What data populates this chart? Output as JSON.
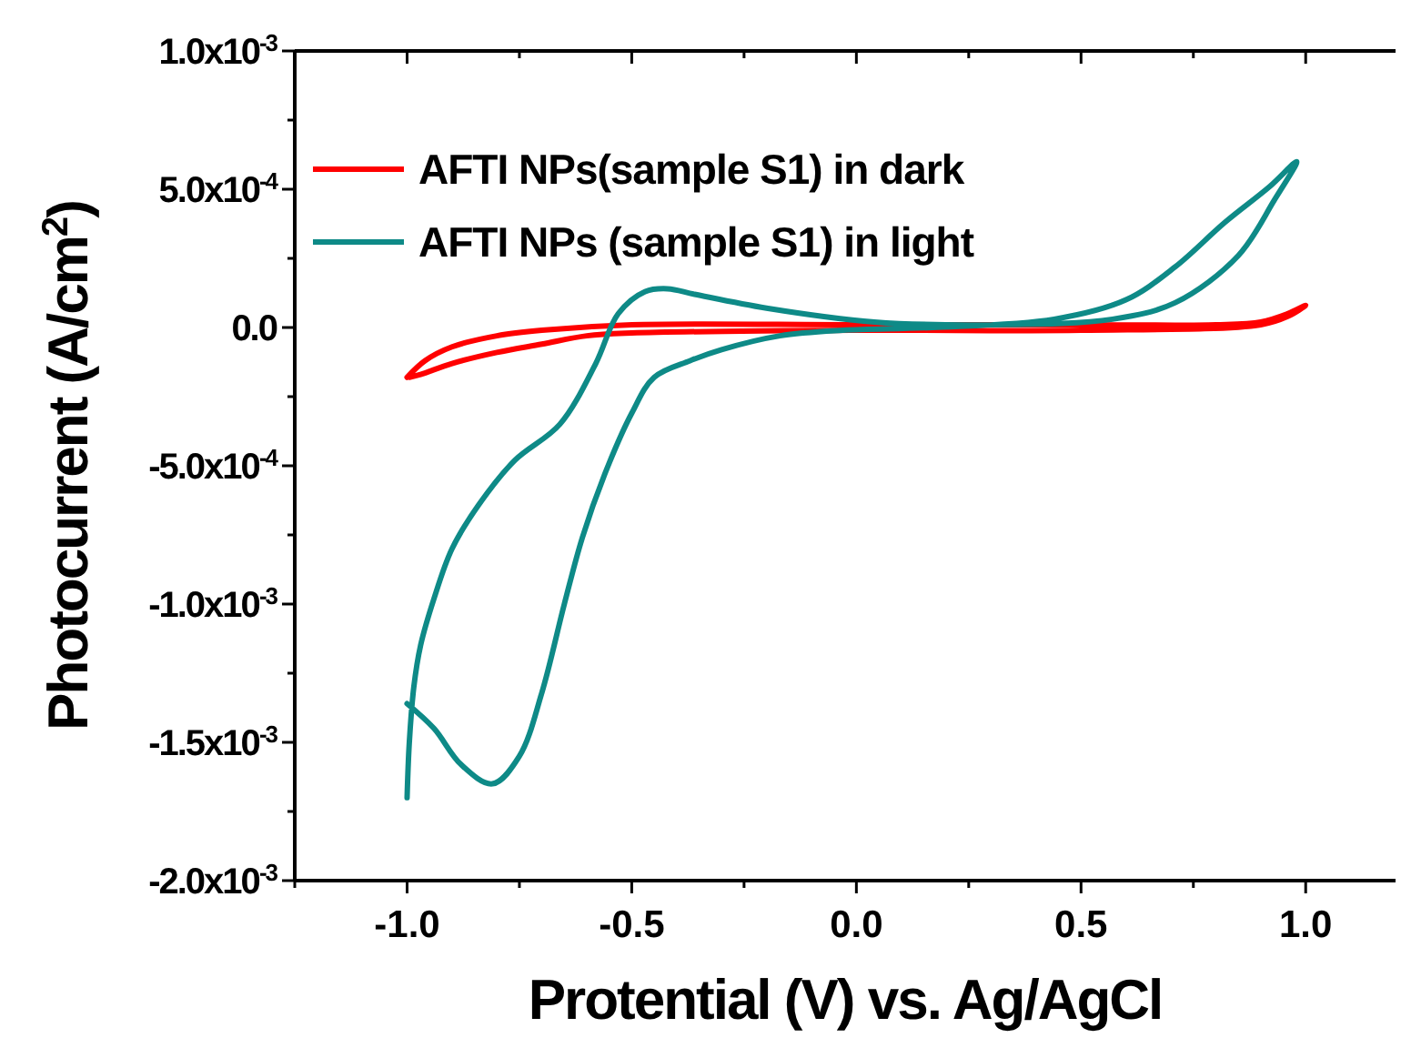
{
  "chart_data": {
    "type": "line",
    "xlabel": "Protential (V) vs. Ag/AgCl",
    "ylabel": "Photocurrent (A/cm$^{2}$)",
    "xlim": [
      -1.25,
      1.2
    ],
    "ylim": [
      -0.002,
      0.001
    ],
    "xticks": [
      {
        "value": -1.25,
        "label": null
      },
      {
        "value": -1.0,
        "label": "-1.0"
      },
      {
        "value": -0.75,
        "label": null
      },
      {
        "value": -0.5,
        "label": "-0.5"
      },
      {
        "value": -0.25,
        "label": null
      },
      {
        "value": 0,
        "label": "0.0"
      },
      {
        "value": 0.25,
        "label": null
      },
      {
        "value": 0.5,
        "label": "0.5"
      },
      {
        "value": 0.75,
        "label": null
      },
      {
        "value": 1.0,
        "label": "1.0"
      }
    ],
    "yticks": [
      {
        "value": -0.002,
        "label": "-2.0x10$^{-3}$"
      },
      {
        "value": -0.00175,
        "label": null
      },
      {
        "value": -0.0015,
        "label": "-1.5x10$^{-3}$"
      },
      {
        "value": -0.00125,
        "label": null
      },
      {
        "value": -0.001,
        "label": "-1.0x10$^{-3}$"
      },
      {
        "value": -0.00075,
        "label": null
      },
      {
        "value": -0.0005,
        "label": "-5.0x10$^{-4}$"
      },
      {
        "value": -0.00025,
        "label": null
      },
      {
        "value": 0,
        "label": "0.0"
      },
      {
        "value": 0.00025,
        "label": null
      },
      {
        "value": 0.0005,
        "label": "5.0x10$^{-4}$"
      },
      {
        "value": 0.00075,
        "label": null
      },
      {
        "value": 0.001,
        "label": "1.0x10$^{-3}$"
      }
    ],
    "grid": false,
    "legend": "top left",
    "marker": "none",
    "line_style": "solid",
    "series": [
      {
        "name": "AFTI NPs(sample S1) in dark",
        "color": "#ff0000",
        "x": [
          -1.0,
          -0.96,
          -0.9,
          -0.8,
          -0.7,
          -0.5,
          0,
          0.5,
          0.8,
          0.9,
          0.96,
          1.0,
          0.96,
          0.9,
          0.5,
          0,
          -0.5,
          -0.6,
          -0.7,
          -0.8,
          -0.9,
          -0.97,
          -0.995
        ],
        "values": [
          -0.00018,
          -0.00012,
          -7e-05,
          -3e-05,
          -1e-05,
          1e-05,
          1e-05,
          1e-05,
          1e-05,
          2e-05,
          5e-05,
          8e-05,
          4e-05,
          1e-05,
          -1e-05,
          -1e-05,
          -2e-05,
          -3e-05,
          -6e-05,
          -9e-05,
          -0.00013,
          -0.00017,
          -0.00018
        ]
      },
      {
        "name": "AFTI NPs (sample S1) in light",
        "color": "#0e8a87",
        "x": [
          -1.0,
          -0.995,
          -0.985,
          -0.97,
          -0.94,
          -0.9,
          -0.84,
          -0.76,
          -0.66,
          -0.58,
          -0.53,
          -0.47,
          -0.42,
          -0.36,
          -0.2,
          0.04,
          0.31,
          0.57,
          0.71,
          0.85,
          0.93,
          0.98,
          0.92,
          0.82,
          0.71,
          0.6,
          0.44,
          0.17,
          -0.03,
          -0.17,
          -0.3,
          -0.37,
          -0.45,
          -0.5,
          -0.56,
          -0.61,
          -0.65,
          -0.7,
          -0.75,
          -0.81,
          -0.88,
          -0.94,
          -1.0
        ],
        "values": [
          -0.0017,
          -0.0015,
          -0.0013,
          -0.00115,
          -0.00098,
          -0.0008,
          -0.00064,
          -0.00048,
          -0.00035,
          -0.00013,
          5e-05,
          0.00013,
          0.00014,
          0.00012,
          7e-05,
          2e-05,
          1e-05,
          3e-05,
          9e-05,
          0.00026,
          0.00046,
          0.0006,
          0.00051,
          0.00038,
          0.00022,
          0.0001,
          3e-05,
          0,
          -1e-05,
          -3e-05,
          -8e-05,
          -0.00012,
          -0.00018,
          -0.00031,
          -0.00053,
          -0.00076,
          -0.001,
          -0.00132,
          -0.00155,
          -0.00165,
          -0.00158,
          -0.00145,
          -0.00136
        ]
      }
    ]
  }
}
